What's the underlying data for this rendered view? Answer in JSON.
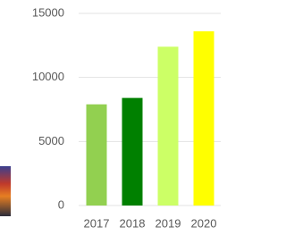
{
  "chart_data": {
    "type": "bar",
    "categories": [
      "2017",
      "2018",
      "2019",
      "2020"
    ],
    "values": [
      7900,
      8400,
      12400,
      13600
    ],
    "colors": [
      "#92d050",
      "#008000",
      "#ccff66",
      "#ffff00"
    ],
    "ylim": [
      0,
      15000
    ],
    "yticks": [
      0,
      5000,
      10000,
      15000
    ],
    "grid": true
  }
}
